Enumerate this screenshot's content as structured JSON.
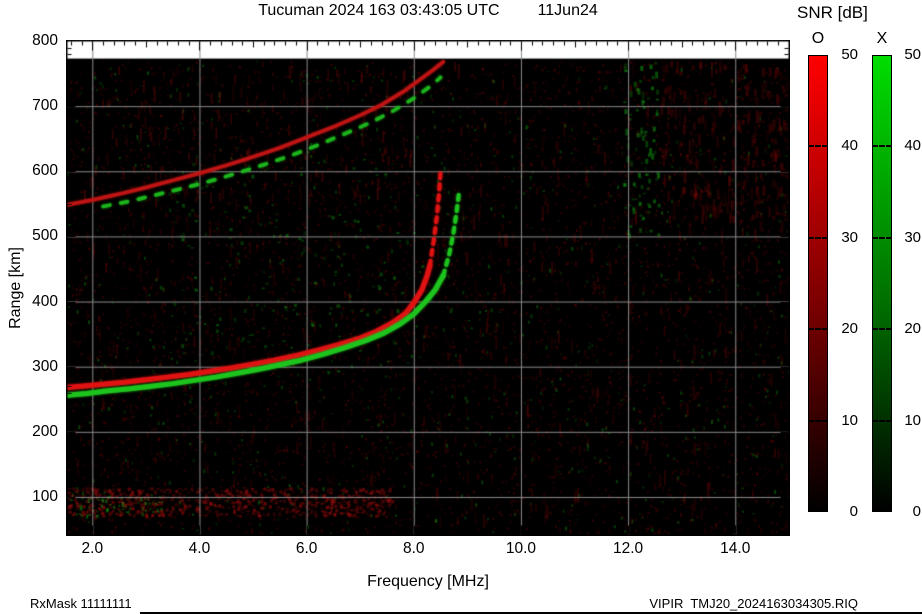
{
  "title": {
    "main": "Tucuman 2024 163 03:43:05 UTC",
    "date": "11Jun24"
  },
  "colorbar": {
    "title": "SNR [dB]",
    "o_label": "O",
    "x_label": "X",
    "ticks": [
      50,
      40,
      30,
      20,
      10,
      0
    ],
    "min": 0,
    "max": 50,
    "o_color_top": "#ff0000",
    "x_color_top": "#00dd00"
  },
  "axes": {
    "x_label": "Frequency [MHz]",
    "y_label": "Range [km]",
    "x_tick_labels": [
      "2.0",
      "4.0",
      "6.0",
      "8.0",
      "10.0",
      "12.0",
      "14.0"
    ],
    "x_tick_values": [
      2,
      4,
      6,
      8,
      10,
      12,
      14
    ],
    "y_tick_labels": [
      "800",
      "700",
      "600",
      "500",
      "400",
      "300",
      "200",
      "100"
    ],
    "y_tick_values": [
      800,
      700,
      600,
      500,
      400,
      300,
      200,
      100
    ]
  },
  "footer": {
    "left": "RxMask 11111111",
    "right": "VIPIR  TMJ20_2024163034305.RIQ"
  },
  "chart_data": {
    "type": "heatmap",
    "subtype": "ionogram",
    "title": "Tucuman 2024 163 03:43:05 UTC 11Jun24",
    "xlabel": "Frequency [MHz]",
    "ylabel": "Range [km]",
    "xlim": [
      1.5,
      15.0
    ],
    "ylim": [
      40,
      800
    ],
    "data_top_km": 773,
    "snr_scale_db": [
      0,
      50
    ],
    "grid": true,
    "grid_x_step_mhz": 2,
    "grid_y_step_km": 100,
    "colors": {
      "background": "#000000",
      "grid": "#8a8a8a",
      "o_mode": "#e01212",
      "x_mode": "#1dc41d",
      "oblique_o": "#c01414",
      "oblique_x": "#1cb41c"
    },
    "traces": [
      {
        "name": "F2-layer O-mode trace",
        "mode": "O",
        "color": "#e01212",
        "width": 5,
        "dash_above_km": 455,
        "points": [
          [
            1.5,
            268
          ],
          [
            1.8,
            270
          ],
          [
            2.2,
            273
          ],
          [
            2.6,
            276
          ],
          [
            3.0,
            280
          ],
          [
            3.4,
            284
          ],
          [
            3.8,
            288
          ],
          [
            4.2,
            293
          ],
          [
            4.6,
            298
          ],
          [
            5.0,
            304
          ],
          [
            5.4,
            310
          ],
          [
            5.8,
            317
          ],
          [
            6.2,
            325
          ],
          [
            6.6,
            334
          ],
          [
            7.0,
            344
          ],
          [
            7.3,
            354
          ],
          [
            7.6,
            367
          ],
          [
            7.85,
            382
          ],
          [
            8.0,
            398
          ],
          [
            8.15,
            418
          ],
          [
            8.25,
            440
          ],
          [
            8.3,
            455
          ],
          [
            8.37,
            492
          ],
          [
            8.43,
            530
          ],
          [
            8.47,
            565
          ],
          [
            8.5,
            600
          ]
        ]
      },
      {
        "name": "F2-layer X-mode trace",
        "mode": "X",
        "color": "#1dc41d",
        "width": 5,
        "dash_above_km": 440,
        "points": [
          [
            1.5,
            256
          ],
          [
            1.9,
            259
          ],
          [
            2.3,
            263
          ],
          [
            2.7,
            266
          ],
          [
            3.1,
            270
          ],
          [
            3.5,
            274
          ],
          [
            3.9,
            279
          ],
          [
            4.3,
            284
          ],
          [
            4.7,
            290
          ],
          [
            5.1,
            296
          ],
          [
            5.5,
            303
          ],
          [
            5.9,
            310
          ],
          [
            6.3,
            319
          ],
          [
            6.7,
            329
          ],
          [
            7.1,
            340
          ],
          [
            7.45,
            352
          ],
          [
            7.75,
            366
          ],
          [
            8.0,
            381
          ],
          [
            8.2,
            398
          ],
          [
            8.4,
            418
          ],
          [
            8.55,
            440
          ],
          [
            8.66,
            472
          ],
          [
            8.74,
            505
          ],
          [
            8.8,
            538
          ],
          [
            8.84,
            565
          ]
        ]
      },
      {
        "name": "Oblique/spread upper trace O",
        "mode": "O",
        "color": "#c01414",
        "width": 3.5,
        "points": [
          [
            1.5,
            548
          ],
          [
            2.0,
            556
          ],
          [
            2.5,
            565
          ],
          [
            3.0,
            575
          ],
          [
            3.5,
            586
          ],
          [
            4.0,
            597
          ],
          [
            4.5,
            609
          ],
          [
            5.0,
            622
          ],
          [
            5.5,
            636
          ],
          [
            6.0,
            652
          ],
          [
            6.5,
            668
          ],
          [
            7.0,
            686
          ],
          [
            7.4,
            702
          ],
          [
            7.8,
            722
          ],
          [
            8.1,
            740
          ],
          [
            8.35,
            755
          ],
          [
            8.55,
            768
          ]
        ]
      },
      {
        "name": "Oblique/spread upper trace X",
        "mode": "X",
        "color": "#1cb41c",
        "width": 3.5,
        "dashed": [
          7,
          11
        ],
        "points": [
          [
            2.2,
            546
          ],
          [
            2.7,
            554
          ],
          [
            3.2,
            564
          ],
          [
            3.7,
            574
          ],
          [
            4.2,
            585
          ],
          [
            4.7,
            597
          ],
          [
            5.2,
            610
          ],
          [
            5.7,
            624
          ],
          [
            6.2,
            640
          ],
          [
            6.7,
            657
          ],
          [
            7.2,
            675
          ],
          [
            7.6,
            692
          ],
          [
            8.0,
            712
          ],
          [
            8.3,
            730
          ],
          [
            8.5,
            744
          ]
        ]
      }
    ],
    "noise_regions": [
      {
        "name": "base-red-speckle",
        "f": [
          1.5,
          15.0
        ],
        "km": [
          45,
          770
        ],
        "count": 5200,
        "size": [
          2,
          2
        ],
        "rgb": [
          140,
          10,
          10
        ],
        "alpha": [
          0.1,
          0.38
        ]
      },
      {
        "name": "base-green-speckle",
        "f": [
          1.5,
          15.0
        ],
        "km": [
          45,
          770
        ],
        "count": 750,
        "size": [
          2,
          3
        ],
        "rgb": [
          20,
          170,
          20
        ],
        "alpha": [
          0.12,
          0.4
        ]
      },
      {
        "name": "red-streaks-right-half",
        "f": [
          8.4,
          15.0
        ],
        "km": [
          45,
          770
        ],
        "count": 420,
        "size": [
          2,
          14
        ],
        "rgb": [
          150,
          10,
          10
        ],
        "alpha": [
          0.08,
          0.3
        ]
      },
      {
        "name": "red-streaks-mid",
        "f": [
          1.6,
          8.3
        ],
        "km": [
          120,
          540
        ],
        "count": 300,
        "size": [
          2,
          12
        ],
        "rgb": [
          150,
          10,
          10
        ],
        "alpha": [
          0.07,
          0.25
        ]
      },
      {
        "name": "red-haze-top-left",
        "f": [
          1.8,
          8.0
        ],
        "km": [
          555,
          765
        ],
        "count": 260,
        "size": [
          2,
          12
        ],
        "rgb": [
          160,
          15,
          15
        ],
        "alpha": [
          0.08,
          0.3
        ]
      },
      {
        "name": "red-haze-top-right",
        "f": [
          12.6,
          15.0
        ],
        "km": [
          520,
          770
        ],
        "count": 240,
        "size": [
          3,
          12
        ],
        "rgb": [
          150,
          10,
          10
        ],
        "alpha": [
          0.1,
          0.3
        ]
      },
      {
        "name": "e-region-band",
        "f": [
          1.5,
          7.6
        ],
        "km": [
          72,
          115
        ],
        "count": 750,
        "size": [
          3,
          3
        ],
        "rgb": [
          170,
          15,
          15
        ],
        "alpha": [
          0.12,
          0.5
        ]
      },
      {
        "name": "e-region-green",
        "f": [
          1.5,
          3.3
        ],
        "km": [
          72,
          108
        ],
        "count": 70,
        "size": [
          2,
          3
        ],
        "rgb": [
          20,
          170,
          20
        ],
        "alpha": [
          0.2,
          0.5
        ]
      },
      {
        "name": "green-cluster-12mhz",
        "f": [
          11.9,
          12.55
        ],
        "km": [
          500,
          770
        ],
        "count": 80,
        "size": [
          3,
          6
        ],
        "rgb": [
          20,
          180,
          20
        ],
        "alpha": [
          0.18,
          0.5
        ]
      },
      {
        "name": "green-speckle-upper-mid",
        "f": [
          3.5,
          8.2
        ],
        "km": [
          280,
          620
        ],
        "count": 120,
        "size": [
          3,
          3
        ],
        "rgb": [
          20,
          170,
          20
        ],
        "alpha": [
          0.15,
          0.45
        ]
      }
    ]
  }
}
